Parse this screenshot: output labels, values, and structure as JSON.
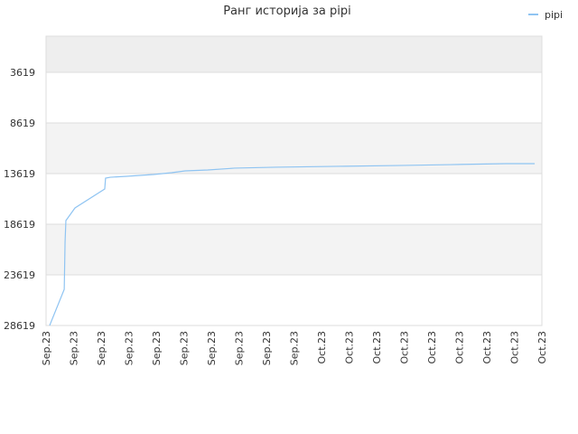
{
  "chart_data": {
    "type": "line",
    "title": "Ранг историја за pipi",
    "categories": [
      "Sep.23",
      "Sep.23",
      "Sep.23",
      "Sep.23",
      "Sep.23",
      "Sep.23",
      "Sep.23",
      "Sep.23",
      "Sep.23",
      "Sep.23",
      "Oct.23",
      "Oct.23",
      "Oct.23",
      "Oct.23",
      "Oct.23",
      "Oct.23",
      "Oct.23",
      "Oct.23",
      "Oct.23"
    ],
    "xlim": [
      0,
      18
    ],
    "ylim": [
      28619,
      48
    ],
    "yticks": [
      3619,
      8619,
      13619,
      18619,
      23619,
      28619
    ],
    "legend": "top-right",
    "series": [
      {
        "name": "pipi",
        "color": "#8fc4f2",
        "x": [
          0.13,
          0.66,
          0.69,
          0.72,
          1.05,
          2.13,
          2.16,
          2.33,
          2.92,
          3.41,
          3.9,
          4.56,
          5.05,
          5.87,
          6.85,
          8.33,
          10.62,
          12.75,
          14.72,
          16.69,
          17.74
        ],
        "values": [
          28619,
          25050,
          20400,
          18260,
          17010,
          15140,
          14070,
          13980,
          13890,
          13800,
          13710,
          13530,
          13350,
          13260,
          13080,
          12990,
          12900,
          12820,
          12730,
          12640,
          12640
        ]
      }
    ]
  }
}
